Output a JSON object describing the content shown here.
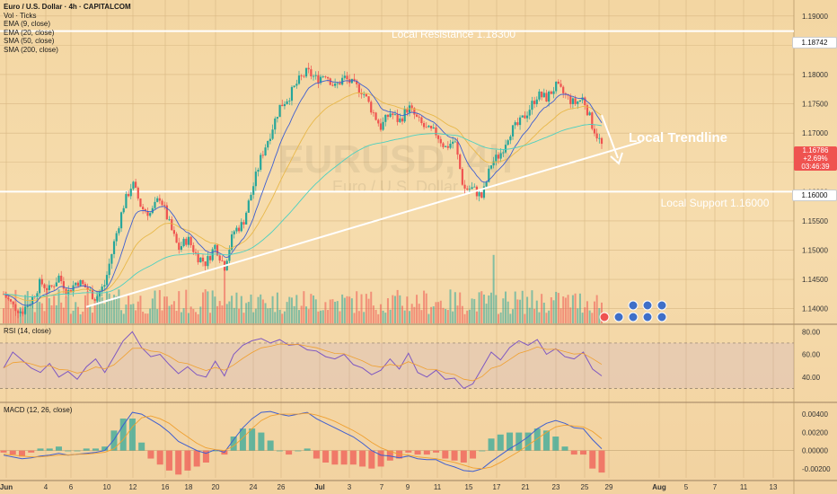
{
  "header": {
    "title": "Euro / U.S. Dollar · 4h · CAPITALCOM",
    "indicators": [
      "Vol · Ticks",
      "EMA (9, close)",
      "EMA (20, close)",
      "SMA (50, close)",
      "SMA (200, close)"
    ]
  },
  "watermark": {
    "symbol": "EURUSD, 4h",
    "name": "Euro / U.S. Dollar"
  },
  "annotations": {
    "resistance": "Local Resistance 1.18300",
    "support": "Local Support 1.16000",
    "trendline": "Local Trendline"
  },
  "price_tags": {
    "resistance_level": "1.18742",
    "support_level": "1.16000",
    "current_price": "1.16786",
    "current_change": "+2.69%",
    "countdown": "03:46:39"
  },
  "rsi_label": "RSI (14, close)",
  "macd_label": "MACD (12, 26, close)",
  "colors": {
    "up": "#26a69a",
    "down": "#ef5350",
    "ema9": "#3f5fd0",
    "ema20": "#e8b84a",
    "rsi": "#7e57c2",
    "macd": "#3f5fd0",
    "signal": "#f0a030"
  },
  "chart_data": {
    "type": "candlestick",
    "symbol": "EURUSD",
    "timeframe": "4h",
    "y_ticks": [
      "1.19000",
      "1.18500",
      "1.18000",
      "1.17500",
      "1.17000",
      "1.16500",
      "1.16000",
      "1.15500",
      "1.15000",
      "1.14500",
      "1.14000"
    ],
    "ylim": [
      1.1375,
      1.1915
    ],
    "x_ticks": [
      "Jun",
      "4",
      "6",
      "10",
      "12",
      "16",
      "18",
      "20",
      "24",
      "26",
      "Jul",
      "3",
      "7",
      "9",
      "11",
      "15",
      "17",
      "21",
      "23",
      "25",
      "29",
      "Aug",
      "5",
      "7",
      "11",
      "13"
    ],
    "close_path": [
      1.1425,
      1.1405,
      1.1395,
      1.1415,
      1.1445,
      1.1432,
      1.1455,
      1.1428,
      1.1448,
      1.1435,
      1.1418,
      1.1442,
      1.1512,
      1.1575,
      1.1615,
      1.1572,
      1.1562,
      1.1592,
      1.1545,
      1.1502,
      1.152,
      1.149,
      1.1478,
      1.1508,
      1.1472,
      1.1532,
      1.1545,
      1.1602,
      1.166,
      1.17,
      1.1745,
      1.1762,
      1.1788,
      1.1805,
      1.1792,
      1.1802,
      1.1778,
      1.1795,
      1.1782,
      1.1772,
      1.174,
      1.171,
      1.1735,
      1.172,
      1.1745,
      1.1722,
      1.1705,
      1.17,
      1.1675,
      1.1688,
      1.1605,
      1.1605,
      1.159,
      1.1648,
      1.1665,
      1.1702,
      1.1715,
      1.1738,
      1.1765,
      1.176,
      1.178,
      1.1765,
      1.175,
      1.176,
      1.1712,
      1.1679
    ],
    "levels": {
      "local_resistance": 1.183,
      "local_support": 1.16,
      "top_line": 1.18742
    },
    "rsi": {
      "range": [
        20,
        85
      ],
      "ticks": [
        "80.00",
        "60.00",
        "40.00"
      ],
      "bands": [
        70,
        30
      ],
      "values": [
        48,
        62,
        55,
        48,
        44,
        52,
        40,
        45,
        38,
        49,
        56,
        44,
        58,
        72,
        80,
        66,
        58,
        60,
        51,
        43,
        49,
        42,
        40,
        54,
        41,
        60,
        68,
        72,
        74,
        70,
        73,
        68,
        69,
        64,
        63,
        58,
        56,
        60,
        51,
        48,
        42,
        46,
        56,
        47,
        61,
        44,
        40,
        46,
        38,
        39,
        30,
        34,
        48,
        62,
        55,
        66,
        72,
        68,
        73,
        60,
        65,
        58,
        56,
        62,
        47,
        41
      ]
    },
    "macd": {
      "range": [
        -0.003,
        0.005
      ],
      "ticks": [
        "0.00400",
        "0.00200",
        "0.00000",
        "-0.00200"
      ],
      "macd_values": [
        -0.0005,
        -0.0007,
        -0.0009,
        -0.0008,
        -0.0006,
        -0.0005,
        -0.0003,
        -0.0005,
        -0.0004,
        -0.0003,
        -0.0002,
        0.0,
        0.0012,
        0.0028,
        0.0042,
        0.004,
        0.0034,
        0.0028,
        0.002,
        0.001,
        0.0005,
        0.0,
        -0.0003,
        0.0001,
        -0.0002,
        0.0012,
        0.0025,
        0.0035,
        0.0042,
        0.0043,
        0.004,
        0.0038,
        0.004,
        0.0042,
        0.0035,
        0.003,
        0.0025,
        0.002,
        0.0015,
        0.0008,
        0.0,
        -0.0005,
        -0.0006,
        -0.0008,
        -0.0006,
        -0.0009,
        -0.001,
        -0.001,
        -0.0015,
        -0.0018,
        -0.0022,
        -0.0023,
        -0.002,
        -0.0012,
        -0.0005,
        0.0002,
        0.0008,
        0.0015,
        0.0024,
        0.003,
        0.0033,
        0.003,
        0.0025,
        0.0024,
        0.0012,
        0.0002
      ],
      "signal_values": [
        -0.0004,
        -0.0005,
        -0.0006,
        -0.0007,
        -0.0007,
        -0.0006,
        -0.0005,
        -0.0005,
        -0.0004,
        -0.0004,
        -0.0003,
        -0.0002,
        0.0002,
        0.0012,
        0.0026,
        0.0036,
        0.0038,
        0.0035,
        0.003,
        0.0022,
        0.0015,
        0.0008,
        0.0003,
        0.0001,
        0.0,
        0.0005,
        0.0014,
        0.0024,
        0.0033,
        0.0038,
        0.004,
        0.004,
        0.004,
        0.0041,
        0.0039,
        0.0036,
        0.0032,
        0.0027,
        0.0022,
        0.0016,
        0.0009,
        0.0003,
        -0.0001,
        -0.0004,
        -0.0005,
        -0.0007,
        -0.0008,
        -0.0009,
        -0.0011,
        -0.0013,
        -0.0016,
        -0.0019,
        -0.002,
        -0.0018,
        -0.0013,
        -0.0007,
        -0.0001,
        0.0006,
        0.0013,
        0.002,
        0.0026,
        0.0028,
        0.0027,
        0.0026,
        0.0021,
        0.0013
      ]
    }
  }
}
